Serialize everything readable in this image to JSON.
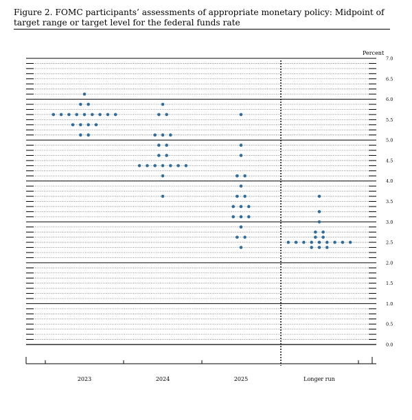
{
  "figure": {
    "title": "Figure 2.  FOMC participants’ assessments of appropriate monetary policy:  Midpoint of target range or target level for the federal funds rate"
  },
  "chart_data": {
    "type": "scatter",
    "title": "Figure 2.  FOMC participants’ assessments of appropriate monetary policy:  Midpoint of target range or target level for the federal funds rate",
    "xlabel": "",
    "ylabel": "Percent",
    "ylim": [
      0,
      7
    ],
    "y_ticks": [
      "0.0",
      "0.5",
      "1.0",
      "1.5",
      "2.0",
      "2.5",
      "3.0",
      "3.5",
      "4.0",
      "4.5",
      "5.0",
      "5.5",
      "6.0",
      "6.5",
      "7.0"
    ],
    "categories": [
      "2023",
      "2024",
      "2025",
      "Longer run"
    ],
    "grid": true,
    "grid_style": "dotted minor lines every 0.125, solid lines at whole percents",
    "separator_before": "Longer run",
    "dot_color": "#2f6e9e",
    "points": [
      {
        "x": "2023",
        "y": 6.125,
        "count": 1
      },
      {
        "x": "2023",
        "y": 5.875,
        "count": 2
      },
      {
        "x": "2023",
        "y": 5.625,
        "count": 9
      },
      {
        "x": "2023",
        "y": 5.375,
        "count": 4
      },
      {
        "x": "2023",
        "y": 5.125,
        "count": 2
      },
      {
        "x": "2024",
        "y": 5.875,
        "count": 1
      },
      {
        "x": "2024",
        "y": 5.625,
        "count": 2
      },
      {
        "x": "2024",
        "y": 5.125,
        "count": 3
      },
      {
        "x": "2024",
        "y": 4.875,
        "count": 2
      },
      {
        "x": "2024",
        "y": 4.625,
        "count": 2
      },
      {
        "x": "2024",
        "y": 4.375,
        "count": 7
      },
      {
        "x": "2024",
        "y": 4.125,
        "count": 1
      },
      {
        "x": "2024",
        "y": 3.625,
        "count": 1
      },
      {
        "x": "2025",
        "y": 5.625,
        "count": 1
      },
      {
        "x": "2025",
        "y": 4.875,
        "count": 1
      },
      {
        "x": "2025",
        "y": 4.625,
        "count": 1
      },
      {
        "x": "2025",
        "y": 4.125,
        "count": 2
      },
      {
        "x": "2025",
        "y": 3.875,
        "count": 1
      },
      {
        "x": "2025",
        "y": 3.625,
        "count": 2
      },
      {
        "x": "2025",
        "y": 3.375,
        "count": 3
      },
      {
        "x": "2025",
        "y": 3.125,
        "count": 3
      },
      {
        "x": "2025",
        "y": 2.875,
        "count": 1
      },
      {
        "x": "2025",
        "y": 2.625,
        "count": 2
      },
      {
        "x": "2025",
        "y": 2.375,
        "count": 1
      },
      {
        "x": "Longer run",
        "y": 3.625,
        "count": 1
      },
      {
        "x": "Longer run",
        "y": 3.25,
        "count": 1
      },
      {
        "x": "Longer run",
        "y": 3.0,
        "count": 1
      },
      {
        "x": "Longer run",
        "y": 2.75,
        "count": 2
      },
      {
        "x": "Longer run",
        "y": 2.625,
        "count": 2
      },
      {
        "x": "Longer run",
        "y": 2.5,
        "count": 9
      },
      {
        "x": "Longer run",
        "y": 2.375,
        "count": 3
      }
    ]
  }
}
